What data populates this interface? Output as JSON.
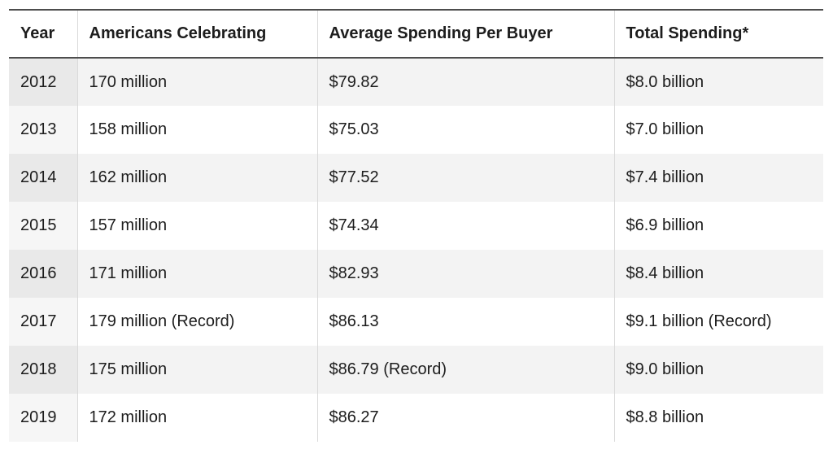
{
  "chart_data": {
    "type": "table",
    "title": "",
    "columns": [
      "Year",
      "Americans Celebrating",
      "Average Spending Per Buyer",
      "Total Spending*"
    ],
    "rows": [
      [
        "2012",
        "170 million",
        "$79.82",
        "$8.0 billion"
      ],
      [
        "2013",
        "158 million",
        "$75.03",
        "$7.0 billion"
      ],
      [
        "2014",
        "162 million",
        "$77.52",
        "$7.4 billion"
      ],
      [
        "2015",
        "157 million",
        "$74.34",
        "$6.9 billion"
      ],
      [
        "2016",
        "171 million",
        "$82.93",
        "$8.4 billion"
      ],
      [
        "2017",
        "179 million (Record)",
        "$86.13",
        "$9.1 billion (Record)"
      ],
      [
        "2018",
        "175 million",
        "$86.79 (Record)",
        "$9.0 billion"
      ],
      [
        "2019",
        "172 million",
        "$86.27",
        "$8.8 billion"
      ]
    ],
    "layout": {
      "striped_rows": [
        2012,
        2014,
        2016,
        2018
      ],
      "header_position": "top",
      "grid": "vertical-dividers-only"
    }
  },
  "colors": {
    "text": "#1d1d1d",
    "header_border": "#4d4d4d",
    "column_divider": "#d9d9d9",
    "row_stripe": "#f3f3f3",
    "year_cell_stripe": "#e9e9e9",
    "year_cell_plain": "#f6f6f6",
    "background": "#ffffff"
  }
}
